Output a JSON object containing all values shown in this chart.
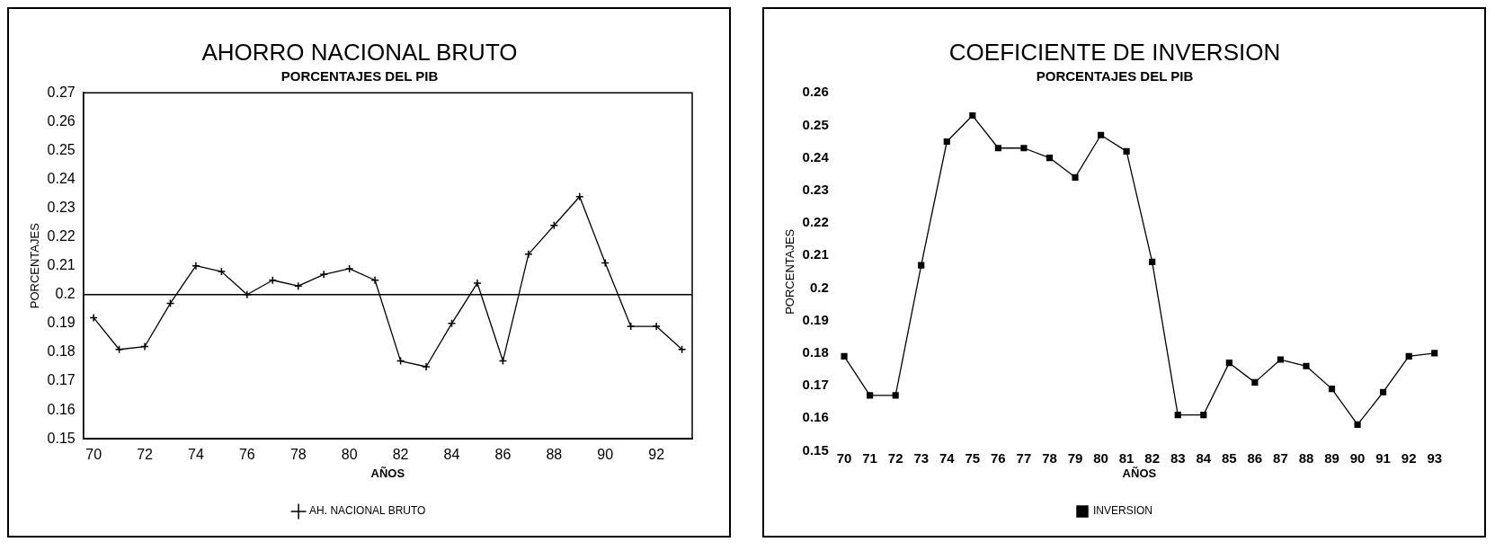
{
  "chart_data": [
    {
      "type": "line",
      "title": "AHORRO NACIONAL BRUTO",
      "subtitle": "PORCENTAJES DEL PIB",
      "xlabel": "AÑOS",
      "ylabel": "PORCENTAJES",
      "x": [
        70,
        71,
        72,
        73,
        74,
        75,
        76,
        77,
        78,
        79,
        80,
        81,
        82,
        83,
        84,
        85,
        86,
        87,
        88,
        89,
        90,
        91,
        92,
        93
      ],
      "series": [
        {
          "name": "AH. NACIONAL BRUTO",
          "color": "#000000",
          "marker": "cross",
          "values": [
            0.192,
            0.181,
            0.182,
            0.197,
            0.21,
            0.208,
            0.2,
            0.205,
            0.203,
            0.207,
            0.209,
            0.205,
            0.177,
            0.175,
            0.19,
            0.204,
            0.177,
            0.214,
            0.224,
            0.234,
            0.211,
            0.189,
            0.189,
            0.181
          ]
        }
      ],
      "xlim": [
        69.6,
        93.4
      ],
      "xticks": [
        70,
        72,
        74,
        76,
        78,
        80,
        82,
        84,
        86,
        88,
        90,
        92
      ],
      "ylim": [
        0.15,
        0.27
      ],
      "yticks": [
        0.15,
        0.16,
        0.17,
        0.18,
        0.19,
        0.2,
        0.21,
        0.22,
        0.23,
        0.24,
        0.25,
        0.26,
        0.27
      ],
      "ref_lines": [
        {
          "axis": "y",
          "value": 0.2,
          "color": "#000000"
        }
      ],
      "grid": false,
      "legend": "bottom"
    },
    {
      "type": "line",
      "title": "COEFICIENTE DE INVERSION",
      "subtitle": "PORCENTAJES DEL PIB",
      "xlabel": "AÑOS",
      "ylabel": "PORCENTAJES",
      "categories": [
        "70",
        "71",
        "72",
        "73",
        "74",
        "75",
        "76",
        "77",
        "78",
        "79",
        "80",
        "81",
        "82",
        "83",
        "84",
        "85",
        "86",
        "87",
        "88",
        "89",
        "90",
        "91",
        "92",
        "93"
      ],
      "series": [
        {
          "name": "INVERSION",
          "color": "#000000",
          "marker": "square",
          "values": [
            0.179,
            0.167,
            0.167,
            0.207,
            0.245,
            0.253,
            0.243,
            0.243,
            0.24,
            0.234,
            0.247,
            0.242,
            0.208,
            0.161,
            0.161,
            0.177,
            0.171,
            0.178,
            0.176,
            0.169,
            0.158,
            0.168,
            0.179,
            0.18
          ]
        }
      ],
      "ylim": [
        0.15,
        0.26
      ],
      "yticks": [
        0.15,
        0.16,
        0.17,
        0.18,
        0.19,
        0.2,
        0.21,
        0.22,
        0.23,
        0.24,
        0.25,
        0.26
      ],
      "grid": false,
      "legend": "bottom"
    }
  ]
}
